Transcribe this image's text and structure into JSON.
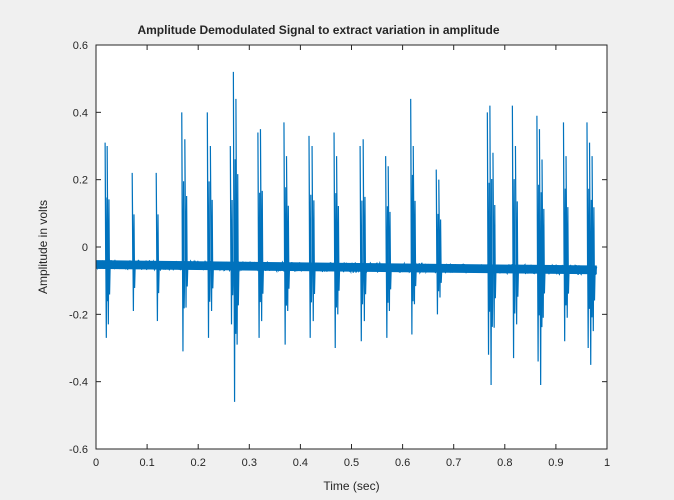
{
  "chart_data": {
    "type": "line",
    "title": "Amplitude Demodulated Signal to extract variation in amplitude",
    "xlabel": "Time (sec)",
    "ylabel": "Amplitude in volts",
    "xlim": [
      0,
      1
    ],
    "ylim": [
      -0.6,
      0.6
    ],
    "xticks": [
      "0",
      "0.1",
      "0.2",
      "0.3",
      "0.4",
      "0.5",
      "0.6",
      "0.7",
      "0.8",
      "0.9",
      "1"
    ],
    "yticks": [
      "-0.6",
      "-0.4",
      "-0.2",
      "0",
      "0.2",
      "0.4",
      "0.6"
    ],
    "grid": false,
    "colors": {
      "series": "#0072bd",
      "figure_bg": "#f0f0f0",
      "axes_bg": "#ffffff"
    },
    "baseline": {
      "start": [
        0,
        -0.052
      ],
      "end": [
        0.98,
        -0.068
      ],
      "band_half_width": 0.013
    },
    "series": [
      {
        "values_description_free": true,
        "spikes": [
          {
            "t": 0.019,
            "max": 0.31,
            "min": -0.27
          },
          {
            "t": 0.023,
            "max": 0.3,
            "min": -0.23
          },
          {
            "t": 0.072,
            "max": 0.22,
            "min": -0.19
          },
          {
            "t": 0.119,
            "max": 0.22,
            "min": -0.22
          },
          {
            "t": 0.169,
            "max": 0.4,
            "min": -0.31
          },
          {
            "t": 0.175,
            "max": 0.32,
            "min": -0.18
          },
          {
            "t": 0.219,
            "max": 0.4,
            "min": -0.27
          },
          {
            "t": 0.225,
            "max": 0.3,
            "min": -0.19
          },
          {
            "t": 0.264,
            "max": 0.3,
            "min": -0.23
          },
          {
            "t": 0.27,
            "max": 0.52,
            "min": -0.46
          },
          {
            "t": 0.275,
            "max": 0.44,
            "min": -0.29
          },
          {
            "t": 0.318,
            "max": 0.34,
            "min": -0.27
          },
          {
            "t": 0.323,
            "max": 0.35,
            "min": -0.22
          },
          {
            "t": 0.369,
            "max": 0.37,
            "min": -0.29
          },
          {
            "t": 0.374,
            "max": 0.27,
            "min": -0.19
          },
          {
            "t": 0.418,
            "max": 0.33,
            "min": -0.27
          },
          {
            "t": 0.424,
            "max": 0.3,
            "min": -0.22
          },
          {
            "t": 0.467,
            "max": 0.34,
            "min": -0.3
          },
          {
            "t": 0.472,
            "max": 0.27,
            "min": -0.2
          },
          {
            "t": 0.518,
            "max": 0.3,
            "min": -0.28
          },
          {
            "t": 0.524,
            "max": 0.32,
            "min": -0.22
          },
          {
            "t": 0.568,
            "max": 0.27,
            "min": -0.27
          },
          {
            "t": 0.573,
            "max": 0.24,
            "min": -0.19
          },
          {
            "t": 0.617,
            "max": 0.44,
            "min": -0.26
          },
          {
            "t": 0.622,
            "max": 0.3,
            "min": -0.17
          },
          {
            "t": 0.667,
            "max": 0.23,
            "min": -0.2
          },
          {
            "t": 0.672,
            "max": 0.2,
            "min": -0.15
          },
          {
            "t": 0.767,
            "max": 0.4,
            "min": -0.32
          },
          {
            "t": 0.772,
            "max": 0.42,
            "min": -0.41
          },
          {
            "t": 0.778,
            "max": 0.28,
            "min": -0.24
          },
          {
            "t": 0.816,
            "max": 0.42,
            "min": -0.33
          },
          {
            "t": 0.822,
            "max": 0.3,
            "min": -0.23
          },
          {
            "t": 0.864,
            "max": 0.39,
            "min": -0.34
          },
          {
            "t": 0.869,
            "max": 0.35,
            "min": -0.41
          },
          {
            "t": 0.874,
            "max": 0.26,
            "min": -0.21
          },
          {
            "t": 0.916,
            "max": 0.37,
            "min": -0.28
          },
          {
            "t": 0.921,
            "max": 0.27,
            "min": -0.21
          },
          {
            "t": 0.962,
            "max": 0.37,
            "min": -0.3
          },
          {
            "t": 0.967,
            "max": 0.31,
            "min": -0.35
          },
          {
            "t": 0.972,
            "max": 0.27,
            "min": -0.25
          }
        ]
      }
    ]
  }
}
